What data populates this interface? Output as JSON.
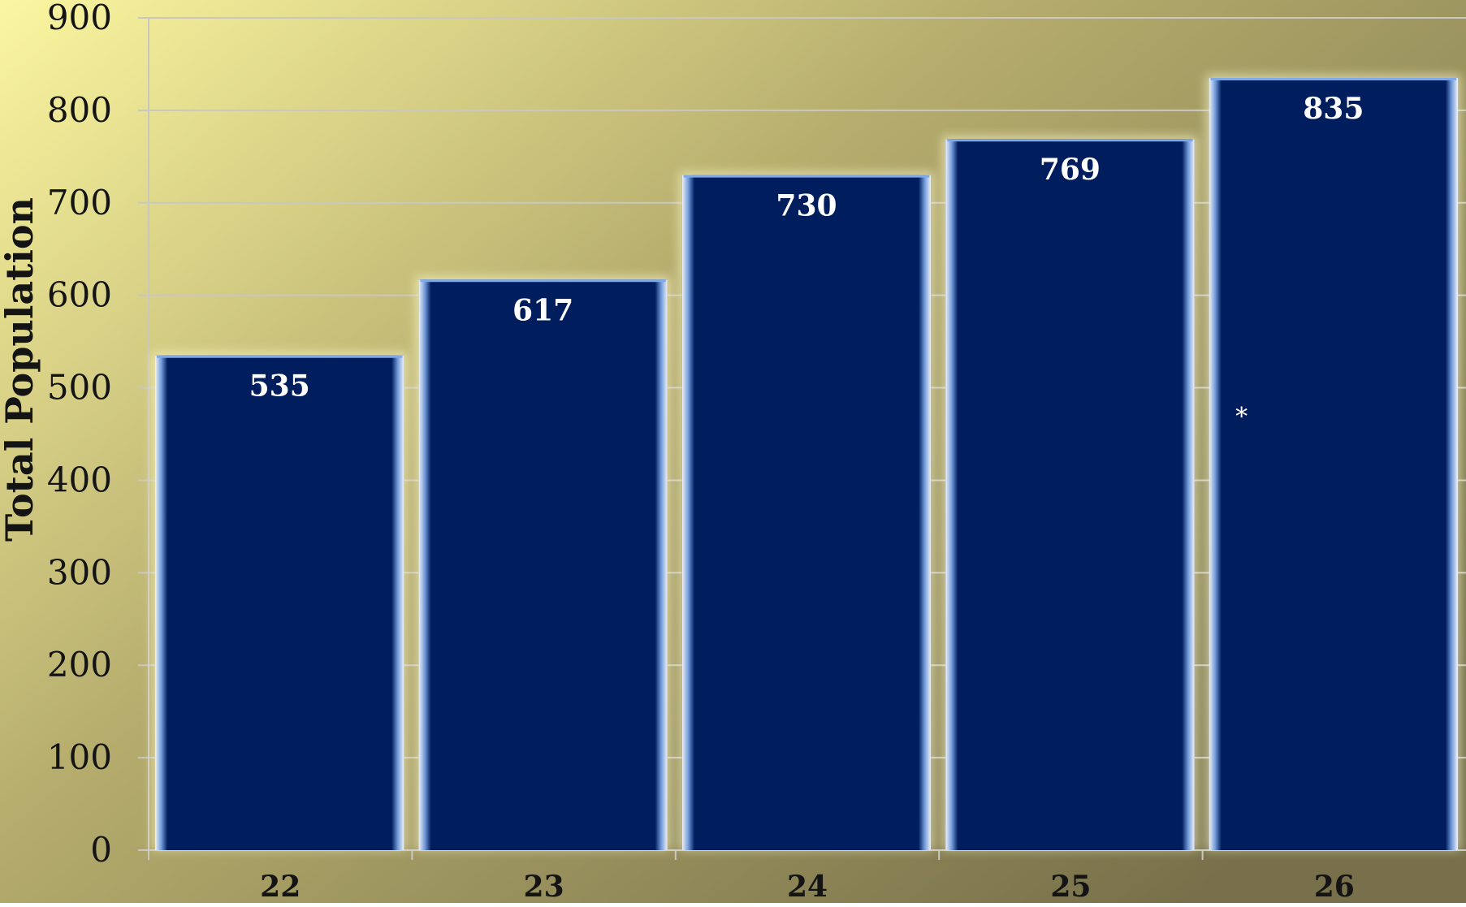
{
  "colors": {
    "bar_fill": "#001d5d",
    "bar_edge": "#7fa9e8",
    "bg_light": "#fbf6a0",
    "bg_mid": "#b4ab6c",
    "bg_dark": "#77704a",
    "grid": "#c9c7c2",
    "text_dark": "#141414",
    "text_light": "#ffffff"
  },
  "chart_data": {
    "type": "bar",
    "title": "",
    "xlabel": "",
    "ylabel": "Total Population",
    "categories": [
      "22",
      "23",
      "24",
      "25",
      "26"
    ],
    "values": [
      535,
      617,
      730,
      769,
      835
    ],
    "data_labels": [
      "535",
      "617",
      "730",
      "769",
      "835"
    ],
    "ylim": [
      0,
      900
    ],
    "yticks": [
      0,
      100,
      200,
      300,
      400,
      500,
      600,
      700,
      800,
      900
    ],
    "grid": true,
    "legend": "none",
    "annotation": {
      "text": "*",
      "category": "26",
      "y": 475
    }
  }
}
